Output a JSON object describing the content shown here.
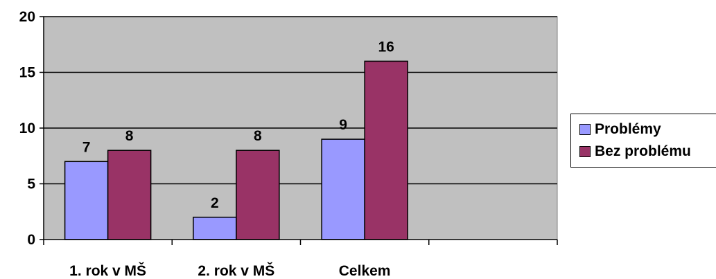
{
  "chart_data": {
    "type": "bar",
    "categories": [
      "1. rok v MŠ",
      "2. rok v MŠ",
      "Celkem"
    ],
    "series": [
      {
        "name": "Problémy",
        "values": [
          7,
          2,
          9
        ],
        "color": "#9999ff"
      },
      {
        "name": "Bez problému",
        "values": [
          8,
          8,
          16
        ],
        "color": "#993366"
      }
    ],
    "ylim": [
      0,
      20
    ],
    "yticks": [
      0,
      5,
      10,
      15,
      20
    ],
    "grid": true,
    "plot_background": "#c0c0c0",
    "legend_position": "right",
    "data_labels": true
  }
}
